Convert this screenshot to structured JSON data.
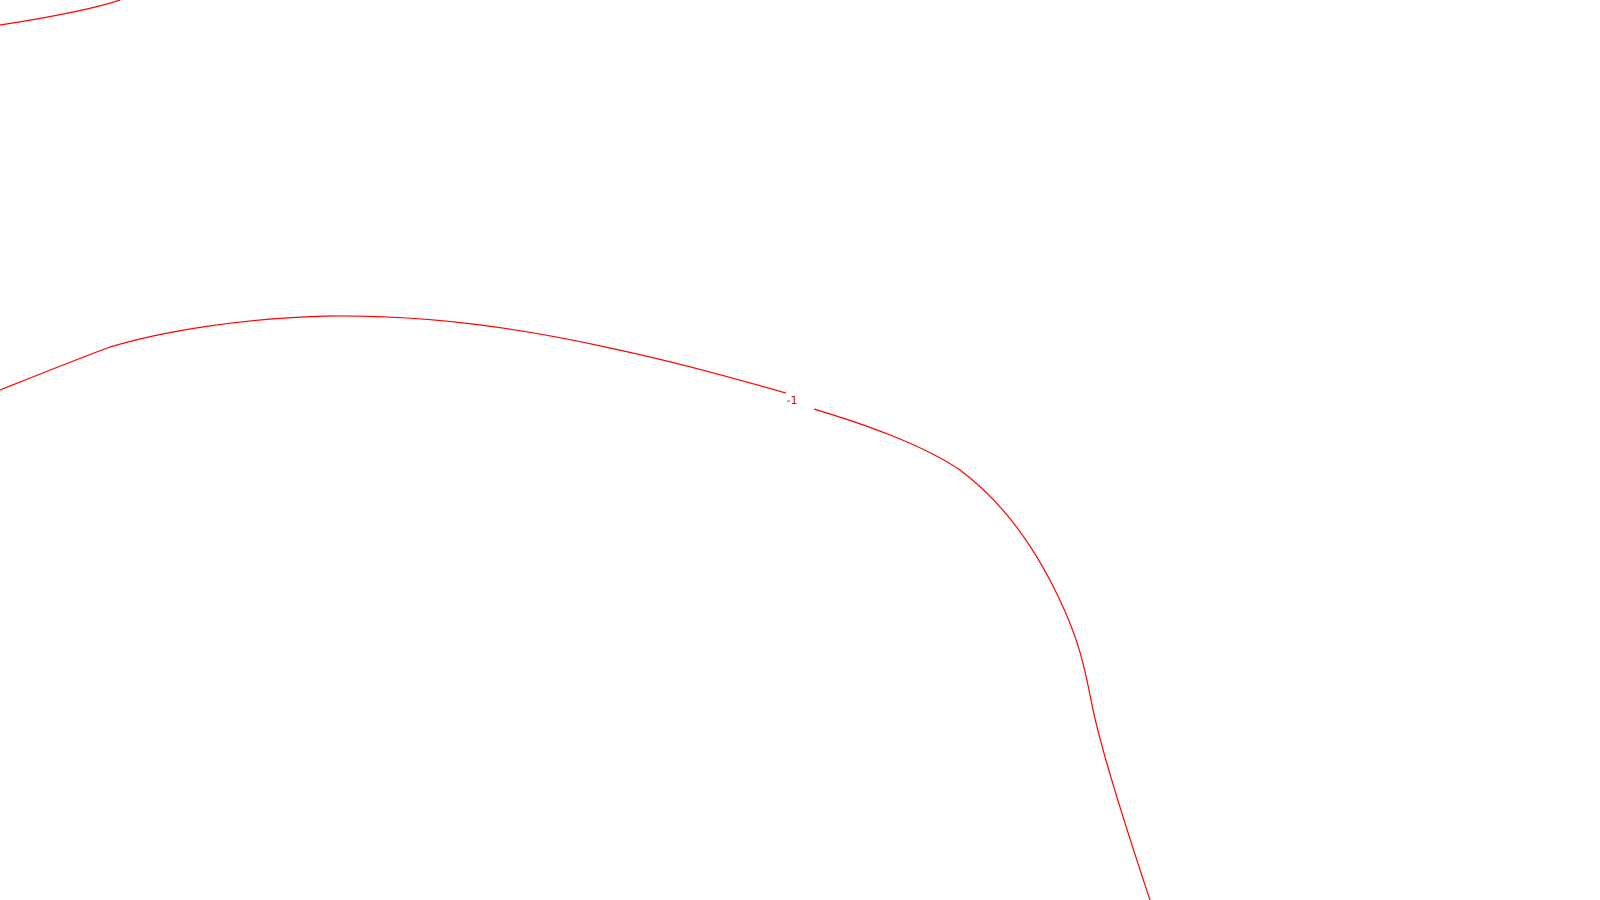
{
  "map": {
    "background_color": "#ffffff",
    "contour_color": "#ff0000",
    "label_color": "#cc0000",
    "contours": [
      {
        "name": "upper-left",
        "label": ""
      },
      {
        "name": "main",
        "label": "-1"
      }
    ]
  }
}
